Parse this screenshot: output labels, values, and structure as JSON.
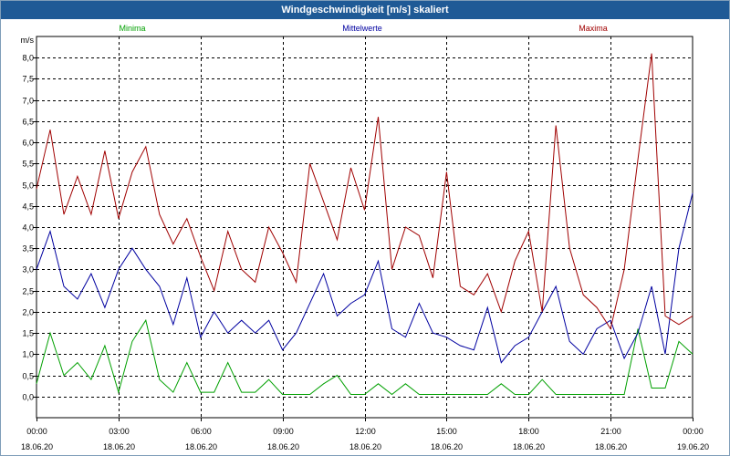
{
  "window": {
    "title": "Windgeschwindigkeit [m/s] skaliert"
  },
  "chart_data": {
    "type": "line",
    "title": "Windgeschwindigkeit [m/s] skaliert",
    "ylabel": "m/s",
    "ylim": [
      -0.5,
      8.5
    ],
    "y_ticks": [
      "0,0",
      "0,5",
      "1,0",
      "1,5",
      "2,0",
      "2,5",
      "3,0",
      "3,5",
      "4,0",
      "4,5",
      "5,0",
      "5,5",
      "6,0",
      "6,5",
      "7,0",
      "7,5",
      "8,0"
    ],
    "x_ticks": [
      {
        "time": "00:00",
        "date": "18.06.20"
      },
      {
        "time": "03:00",
        "date": "18.06.20"
      },
      {
        "time": "06:00",
        "date": "18.06.20"
      },
      {
        "time": "09:00",
        "date": "18.06.20"
      },
      {
        "time": "12:00",
        "date": "18.06.20"
      },
      {
        "time": "15:00",
        "date": "18.06.20"
      },
      {
        "time": "18:00",
        "date": "18.06.20"
      },
      {
        "time": "21:00",
        "date": "18.06.20"
      },
      {
        "time": "00:00",
        "date": "19.06.20"
      }
    ],
    "xlim": [
      "18.06.20 00:00",
      "19.06.20 00:00"
    ],
    "grid": true,
    "legend": "top",
    "x_hours": [
      0,
      0.5,
      1,
      1.5,
      2,
      2.5,
      3,
      3.5,
      4,
      4.5,
      5,
      5.5,
      6,
      6.5,
      7,
      7.5,
      8,
      8.5,
      9,
      9.5,
      10,
      10.5,
      11,
      11.5,
      12,
      12.5,
      13,
      13.5,
      14,
      14.5,
      15,
      15.5,
      16,
      16.5,
      17,
      17.5,
      18,
      18.5,
      19,
      19.5,
      20,
      20.5,
      21,
      21.5,
      22,
      22.5,
      23,
      23.5,
      24
    ],
    "series": [
      {
        "name": "Minima",
        "color": "#00a000",
        "values": [
          0.3,
          1.5,
          0.5,
          0.8,
          0.4,
          1.2,
          0.1,
          1.3,
          1.8,
          0.4,
          0.1,
          0.8,
          0.1,
          0.1,
          0.8,
          0.1,
          0.1,
          0.4,
          0.05,
          0.05,
          0.05,
          0.3,
          0.5,
          0.05,
          0.05,
          0.3,
          0.05,
          0.3,
          0.05,
          0.05,
          0.05,
          0.05,
          0.05,
          0.05,
          0.3,
          0.05,
          0.05,
          0.4,
          0.05,
          0.05,
          0.05,
          0.05,
          0.05,
          0.05,
          1.6,
          0.2,
          0.2,
          1.3,
          1.0
        ]
      },
      {
        "name": "Mittelwerte",
        "color": "#0000a0",
        "values": [
          3.0,
          3.9,
          2.6,
          2.3,
          2.9,
          2.1,
          3.0,
          3.5,
          3.0,
          2.6,
          1.7,
          2.8,
          1.4,
          2.0,
          1.5,
          1.8,
          1.5,
          1.8,
          1.1,
          1.5,
          2.2,
          2.9,
          1.9,
          2.2,
          2.4,
          3.2,
          1.6,
          1.4,
          2.2,
          1.5,
          1.4,
          1.2,
          1.1,
          2.1,
          0.8,
          1.2,
          1.4,
          2.0,
          2.6,
          1.3,
          1.0,
          1.6,
          1.8,
          0.9,
          1.5,
          2.6,
          1.0,
          3.5,
          4.8
        ]
      },
      {
        "name": "Maxima",
        "color": "#a00000",
        "values": [
          4.9,
          6.3,
          4.3,
          5.2,
          4.3,
          5.8,
          4.2,
          5.3,
          5.9,
          4.3,
          3.6,
          4.2,
          3.3,
          2.5,
          3.9,
          3.0,
          2.7,
          4.0,
          3.4,
          2.7,
          5.5,
          4.6,
          3.7,
          5.4,
          4.4,
          6.6,
          3.0,
          4.0,
          3.8,
          2.8,
          5.3,
          2.6,
          2.4,
          2.9,
          2.0,
          3.2,
          3.9,
          2.0,
          6.4,
          3.5,
          2.4,
          2.1,
          1.6,
          3.0,
          5.6,
          8.1,
          1.9,
          1.7,
          1.9
        ]
      }
    ]
  }
}
